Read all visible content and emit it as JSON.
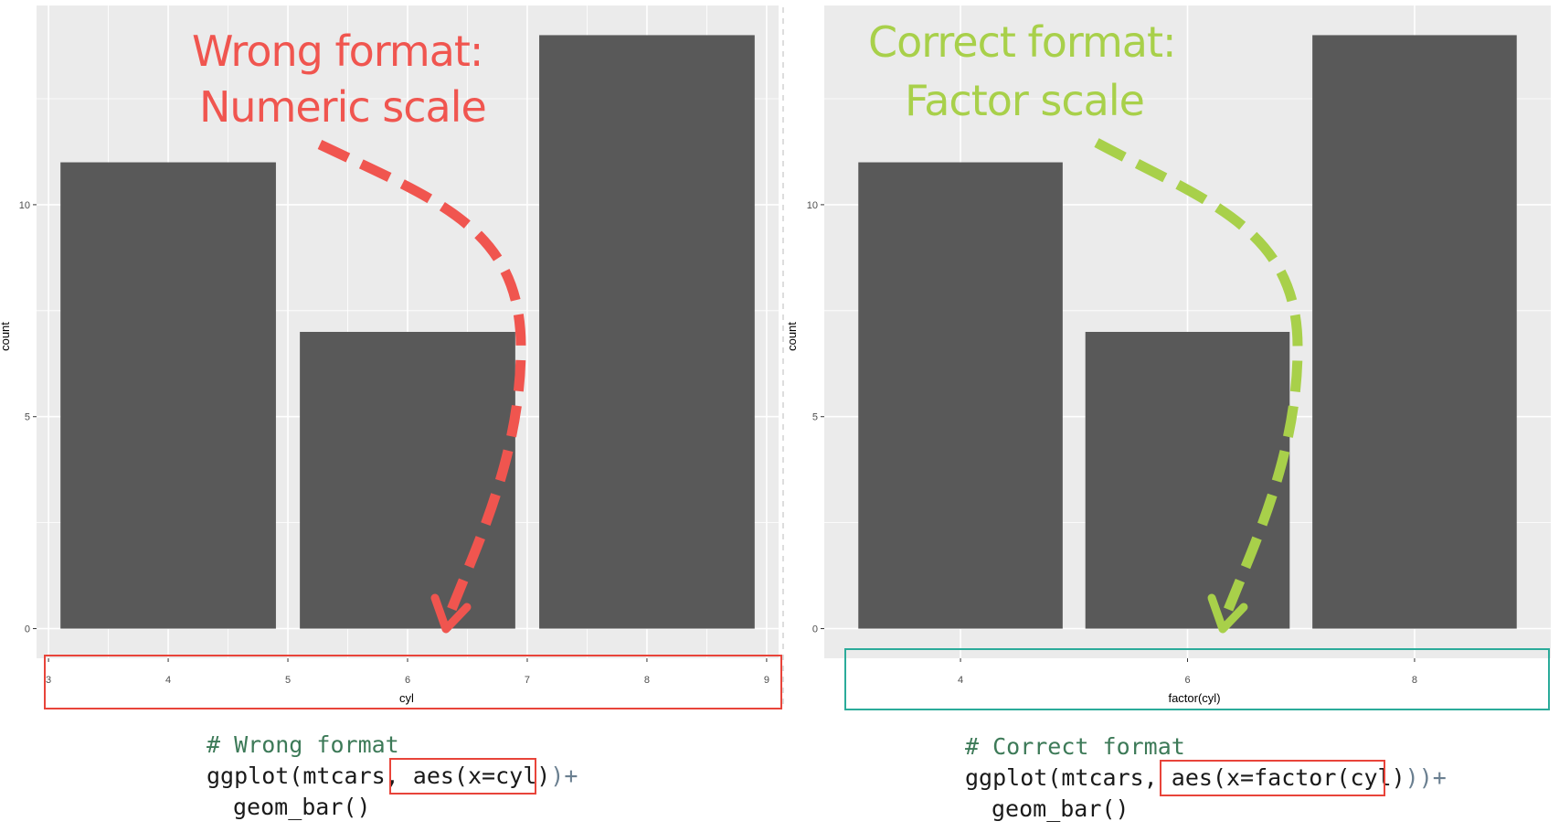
{
  "left_panel": {
    "annotation_line1": "Wrong format:",
    "annotation_line2": "Numeric scale",
    "code_comment": "# Wrong format",
    "code_prefix": "ggplot(mtcars, ",
    "code_highlight": "aes(x=cyl)",
    "code_suffix": ")+",
    "code_line3": "geom_bar()"
  },
  "right_panel": {
    "annotation_line1": "Correct format:",
    "annotation_line2": "Factor scale",
    "code_comment": "# Correct format",
    "code_prefix": "ggplot(mtcars, ",
    "code_highlight": "aes(x=factor(cyl)",
    "code_suffix": "))+",
    "code_line3": "geom_bar()"
  },
  "colors": {
    "panel_bg": "#ebebeb",
    "grid": "#ffffff",
    "bar": "#595959",
    "wrong_accent": "#f0554f",
    "correct_accent": "#a8d04a",
    "highlight_box": "#e8443a",
    "factor_box": "#2bab9a",
    "code_comment": "#3d7a58",
    "code_text": "#1a1a1a",
    "code_punct": "#6a7f90"
  },
  "chart_data": [
    {
      "type": "bar",
      "x": [
        4,
        6,
        8
      ],
      "values": [
        11,
        7,
        14
      ],
      "xlabel": "cyl",
      "ylabel": "count",
      "xlim": [
        2.9,
        9.1
      ],
      "ylim": [
        -0.7,
        14.7
      ],
      "x_ticks": [
        "3",
        "4",
        "5",
        "6",
        "7",
        "8",
        "9"
      ],
      "y_ticks": [
        "0",
        "5",
        "10"
      ],
      "x_scale": "numeric",
      "grid": true
    },
    {
      "type": "bar",
      "categories": [
        "4",
        "6",
        "8"
      ],
      "values": [
        11,
        7,
        14
      ],
      "xlabel": "factor(cyl)",
      "ylabel": "count",
      "ylim": [
        -0.7,
        14.7
      ],
      "y_ticks": [
        "0",
        "5",
        "10"
      ],
      "x_scale": "factor",
      "grid": true
    }
  ]
}
